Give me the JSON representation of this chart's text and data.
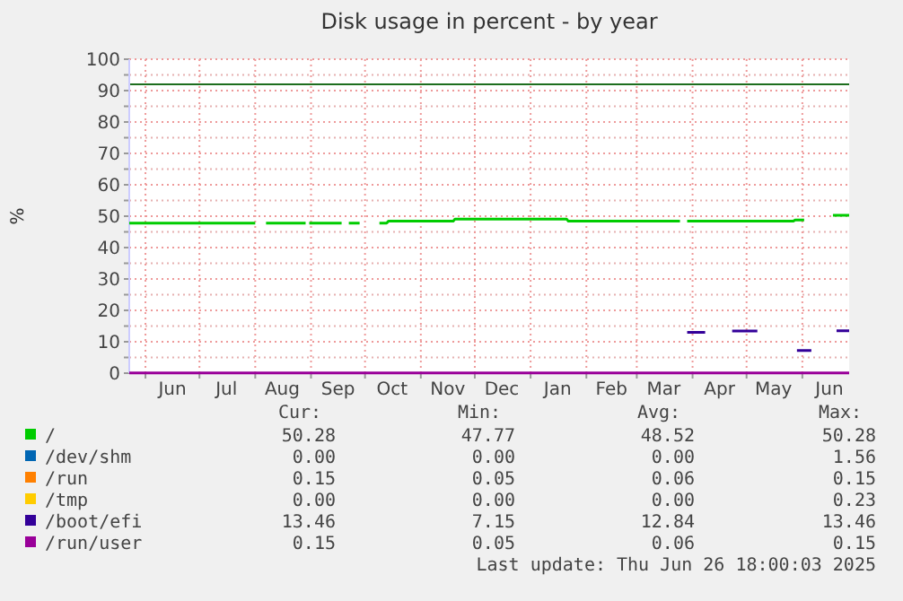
{
  "chart_data": {
    "type": "line",
    "title": "Disk usage in percent - by year",
    "ylabel": "%",
    "xlim": [
      "2024-05-23",
      "2025-06-27"
    ],
    "xticks": [
      {
        "value": "2024-06-01",
        "label": null
      },
      {
        "value": "2024-06-16",
        "label": "Jun"
      },
      {
        "value": "2024-07-01",
        "label": null
      },
      {
        "value": "2024-07-16",
        "label": "Jul"
      },
      {
        "value": "2024-08-01",
        "label": null
      },
      {
        "value": "2024-08-16",
        "label": "Aug"
      },
      {
        "value": "2024-09-01",
        "label": null
      },
      {
        "value": "2024-09-16",
        "label": "Sep"
      },
      {
        "value": "2024-10-01",
        "label": null
      },
      {
        "value": "2024-10-16",
        "label": "Oct"
      },
      {
        "value": "2024-11-01",
        "label": null
      },
      {
        "value": "2024-11-16",
        "label": "Nov"
      },
      {
        "value": "2024-12-01",
        "label": null
      },
      {
        "value": "2024-12-16",
        "label": "Dec"
      },
      {
        "value": "2025-01-01",
        "label": null
      },
      {
        "value": "2025-01-16",
        "label": "Jan"
      },
      {
        "value": "2025-02-01",
        "label": null
      },
      {
        "value": "2025-02-15",
        "label": "Feb"
      },
      {
        "value": "2025-03-01",
        "label": null
      },
      {
        "value": "2025-03-16",
        "label": "Mar"
      },
      {
        "value": "2025-04-01",
        "label": null
      },
      {
        "value": "2025-04-16",
        "label": "Apr"
      },
      {
        "value": "2025-05-01",
        "label": null
      },
      {
        "value": "2025-05-16",
        "label": "May"
      },
      {
        "value": "2025-06-01",
        "label": null
      },
      {
        "value": "2025-06-16",
        "label": "Jun"
      }
    ],
    "ylim": [
      0,
      100
    ],
    "yticks": [
      0,
      {
        "value": 5,
        "label": null
      },
      10,
      {
        "value": 15,
        "label": null
      },
      20,
      {
        "value": 25,
        "label": null
      },
      30,
      {
        "value": 35,
        "label": null
      },
      40,
      {
        "value": 45,
        "label": null
      },
      50,
      {
        "value": 55,
        "label": null
      },
      60,
      {
        "value": 65,
        "label": null
      },
      70,
      {
        "value": 75,
        "label": null
      },
      80,
      {
        "value": 85,
        "label": null
      },
      90,
      {
        "value": 95,
        "label": null
      },
      100
    ],
    "grid": true,
    "legend": "bottom",
    "line_style": "solid",
    "marker": "none",
    "ref_lines": [
      {
        "axis": "y",
        "value": 92,
        "color": "#1e6e1e"
      }
    ],
    "series": [
      {
        "name": "/",
        "color": "#00cc00",
        "x": [
          "2024-05-23",
          "2024-08-01",
          "2024-08-04",
          "2024-08-07",
          "2024-08-29",
          "2024-08-30",
          "2024-08-31",
          "2024-09-18",
          "2024-09-20",
          "2024-09-22",
          "2024-09-28",
          "2024-10-01",
          "2024-10-09",
          "2024-10-13",
          "2024-10-14",
          "2024-11-19",
          "2024-11-20",
          "2025-01-21",
          "2025-01-22",
          "2025-03-25",
          "2025-03-27",
          "2025-03-29",
          "2025-05-27",
          "2025-05-28",
          "2025-06-02",
          "2025-06-10",
          "2025-06-18",
          "2025-06-27"
        ],
        "values": [
          47.8,
          47.8,
          null,
          47.8,
          47.8,
          null,
          47.8,
          47.8,
          null,
          47.8,
          47.8,
          null,
          47.8,
          47.8,
          48.4,
          48.4,
          49.1,
          49.1,
          48.4,
          48.4,
          null,
          48.4,
          48.4,
          48.8,
          48.8,
          null,
          50.3,
          50.3
        ]
      },
      {
        "name": "/dev/shm",
        "color": "#0066b3"
      },
      {
        "name": "/run",
        "color": "#ff8000"
      },
      {
        "name": "/tmp",
        "color": "#ffcc00"
      },
      {
        "name": "/boot/efi",
        "color": "#330099",
        "x": [
          "2025-03-29",
          "2025-04-08",
          "2025-04-15",
          "2025-04-23",
          "2025-05-07",
          "2025-05-20",
          "2025-05-29",
          "2025-06-06",
          "2025-06-12",
          "2025-06-20",
          "2025-06-27"
        ],
        "values": [
          13.0,
          13.0,
          null,
          13.4,
          13.4,
          null,
          7.2,
          7.2,
          null,
          13.5,
          13.5
        ]
      },
      {
        "name": "/run/user",
        "color": "#990099",
        "x": [
          "2024-05-23",
          "2025-06-27"
        ],
        "values": [
          0.1,
          0.1
        ]
      }
    ],
    "annotations": [
      "Cur:",
      "Min:",
      "Avg:",
      "Max:",
      "50.28",
      "47.77",
      "48.52",
      "50.28",
      "0.00",
      "0.00",
      "0.00",
      "1.56",
      "0.15",
      "0.05",
      "0.06",
      "0.15",
      "0.00",
      "0.00",
      "0.00",
      "0.23",
      "13.46",
      "7.15",
      "12.84",
      "13.46",
      "0.15",
      "0.05",
      "0.06",
      "0.15",
      "Last update: Thu Jun 26 18:00:03 2025"
    ]
  }
}
